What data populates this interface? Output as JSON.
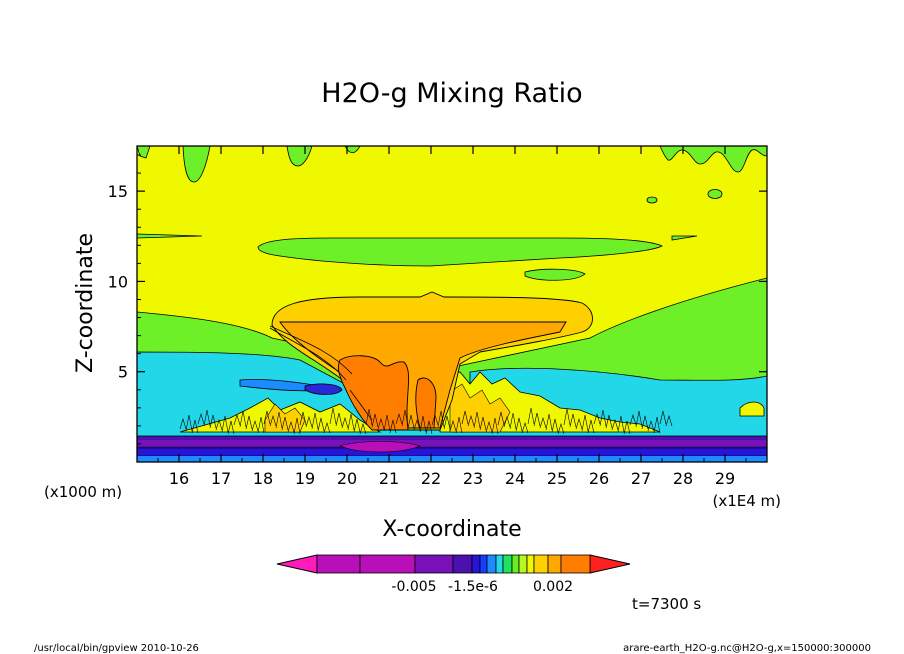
{
  "chart_data": {
    "type": "heatmap",
    "title": "H2O-g Mixing Ratio",
    "xlabel": "X-coordinate",
    "ylabel": "Z-coordinate",
    "x_unit": "(x1E4 m)",
    "y_unit": "(x1000 m)",
    "xlim": [
      15,
      30
    ],
    "ylim": [
      0,
      17.5
    ],
    "x_ticks": [
      "16",
      "17",
      "18",
      "19",
      "20",
      "21",
      "22",
      "23",
      "24",
      "25",
      "26",
      "27",
      "28",
      "29"
    ],
    "y_ticks": [
      "5",
      "10",
      "15"
    ],
    "colorbar": {
      "labels": [
        "-0.005",
        "-1.5e-6",
        "0.002"
      ],
      "colors": [
        "#ff1cb8",
        "#b80fb8",
        "#b80fb8",
        "#7a10b8",
        "#4a10b0",
        "#2814d8",
        "#1a3cff",
        "#1a8cff",
        "#22d8e8",
        "#22e060",
        "#66ee22",
        "#b8f822",
        "#f0f800",
        "#ffd000",
        "#ffa800",
        "#ff7e00",
        "#ff2020"
      ]
    },
    "time_label": "t=7300 s",
    "footer_left": "/usr/local/bin/gpview  2010-10-26",
    "footer_right": "arare-earth_H2O-g.nc@H2O-g,x=150000:300000"
  }
}
